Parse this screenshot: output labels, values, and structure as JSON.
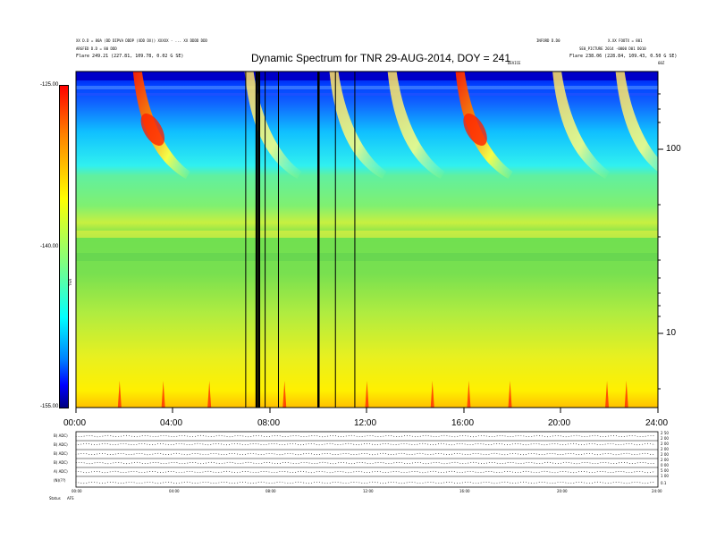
{
  "header": {
    "left_line1": "XX D.D = 80A (DD DIPVA DDDP (XDD DX)) XXXXX - ... XX DDDD DDD",
    "left_line2": "ARGFED D.D = 80 DDD",
    "left_line3": "Flare   249.21 (227.81, 109.78, 0.02 G SE)",
    "right_line1": "INFORD D.D0",
    "right_line2": "X.XX FOOTX = 801",
    "right_line3": "SE0_PICTURE  2014 -0000  D01 D010",
    "right_line4": "Flare   238.06 (228.84, 109.43, 0.50 G SE)",
    "right_small": "DEVICE",
    "right_corner": "60Z"
  },
  "colorbar": {
    "label": "TNR",
    "ticks": [
      "-125.00",
      "-140.00",
      "-155.00"
    ]
  },
  "low_panel": {
    "row_labels": [
      "B( ADC)",
      "B( ADC)",
      "B( ADC)",
      "B( ADC)",
      "A( ADC)",
      "(N)(??)"
    ],
    "right_scale": [
      "2 50",
      "2 00",
      "2 00",
      "2 00",
      "2 00",
      "2 00",
      "0 00",
      "5 00",
      "1 00",
      "0.1"
    ],
    "x_ticks": [
      "00:00",
      "04:00",
      "08:00",
      "12:00",
      "16:00",
      "20:00",
      "24:00"
    ],
    "corner": [
      "Status",
      "AFS"
    ]
  },
  "chart_data": {
    "type": "heatmap",
    "title": "Dynamic Spectrum for TNR 29-AUG-2014, DOY = 241",
    "x_unit": "hours UT",
    "xlim": [
      0,
      24
    ],
    "x_ticks": [
      "00:00",
      "04:00",
      "08:00",
      "12:00",
      "16:00",
      "20:00",
      "24:00"
    ],
    "y_scale": "log",
    "ylim": [
      4,
      300
    ],
    "y_ticks": [
      "100",
      "10"
    ],
    "z_range": [
      -155.0,
      -125.0
    ],
    "z_label": "TNR",
    "colormap": [
      "#000080",
      "#0000ff",
      "#0080ff",
      "#00ffff",
      "#80ff80",
      "#ffff00",
      "#ff8000",
      "#ff0000",
      "#800000"
    ],
    "radio_bursts_start_hours": [
      2.5,
      7.1,
      10.6,
      13.0,
      15.8,
      19.8,
      22.4
    ],
    "data_gaps_hours": [
      7.45,
      7.55,
      10.0
    ]
  }
}
